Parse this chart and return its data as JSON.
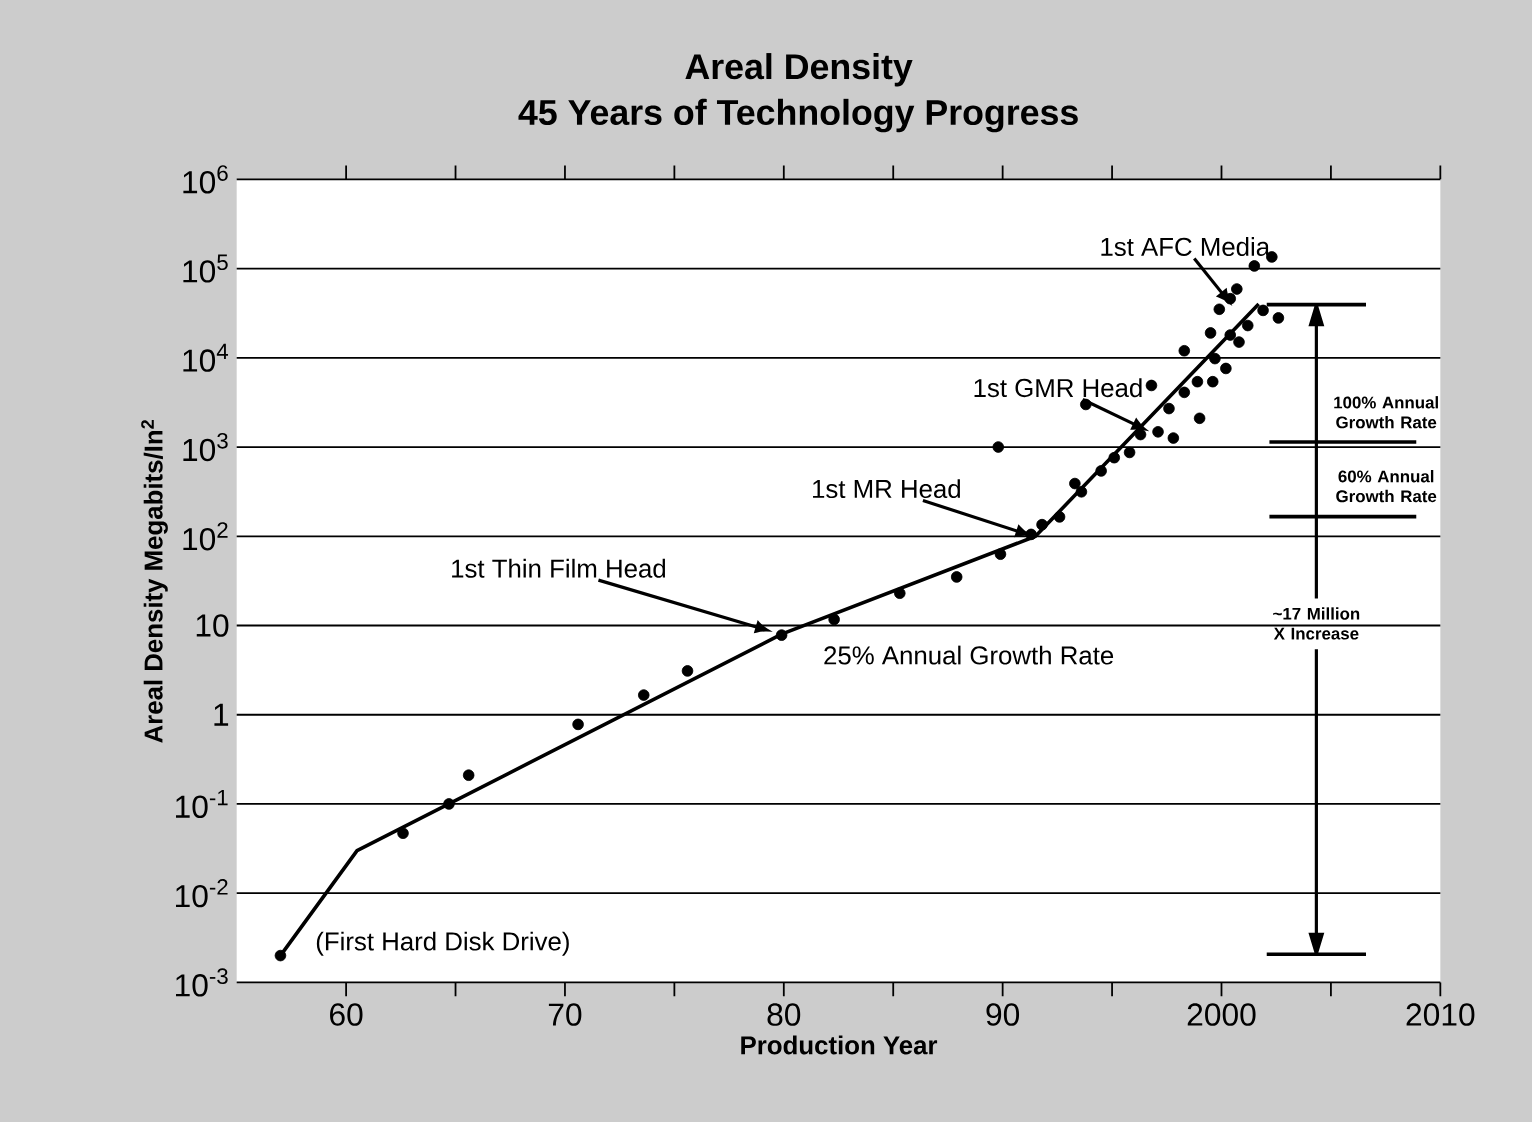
{
  "chart_data": {
    "type": "scatter",
    "title": "Areal Density",
    "subtitle": "45 Years of Technology Progress",
    "xlabel": "Production Year",
    "ylabel": "Areal Density Megabits/In$^{2}$",
    "log": "y",
    "grid": "y",
    "marker": "circle",
    "xlim": [
      1955,
      2010
    ],
    "ylim": [
      0.001,
      1000000
    ],
    "xticks": [
      {
        "value": 1960,
        "label": "60"
      },
      {
        "value": 1965,
        "label": null
      },
      {
        "value": 1970,
        "label": "70"
      },
      {
        "value": 1975,
        "label": null
      },
      {
        "value": 1980,
        "label": "80"
      },
      {
        "value": 1985,
        "label": null
      },
      {
        "value": 1990,
        "label": "90"
      },
      {
        "value": 1995,
        "label": null
      },
      {
        "value": 2000,
        "label": "2000"
      },
      {
        "value": 2005,
        "label": null
      },
      {
        "value": 2010,
        "label": "2010"
      }
    ],
    "yticks": [
      {
        "value": 0.001,
        "label": "10$^{-3}$"
      },
      {
        "value": 0.01,
        "label": "10$^{-2}$"
      },
      {
        "value": 0.1,
        "label": "10$^{-1}$"
      },
      1,
      10,
      {
        "value": 100,
        "label": "10$^{2}$"
      },
      {
        "value": 1000,
        "label": "10$^{3}$"
      },
      {
        "value": 10000,
        "label": "10$^{4}$"
      },
      {
        "value": 100000,
        "label": "10$^{5}$"
      },
      {
        "value": 1000000,
        "label": "10$^{6}$"
      }
    ],
    "series": [
      {
        "type": "line",
        "marker": "none",
        "color": "#000000",
        "x": [
          1957,
          1960.5,
          1979.9,
          1991.5,
          2001.7
        ],
        "values": [
          0.002,
          0.03,
          8,
          100,
          40000
        ]
      },
      {
        "color": "#000000",
        "x": [
          1957,
          1962.6,
          1964.7,
          1965.6,
          1970.6,
          1973.6,
          1975.6,
          1979.9,
          1982.3,
          1985.3,
          1987.9,
          1989.8,
          1989.9,
          1991.3,
          1991.8,
          1992.6,
          1993.3,
          1993.6,
          1993.8,
          1994.5,
          1995.1,
          1995.8,
          1996.3,
          1996.8,
          1997.1,
          1997.6,
          1997.8,
          1998.3,
          1998.3,
          1998.9,
          1999.0,
          1999.5,
          1999.6,
          1999.7,
          1999.9,
          2000.2,
          2000.4,
          2000.4,
          2000.7,
          2000.8,
          2001.2,
          2001.5,
          2001.9,
          2002.3,
          2002.6
        ],
        "values": [
          0.002,
          0.047,
          0.1,
          0.21,
          0.78,
          1.66,
          3.1,
          7.8,
          11.7,
          23,
          35,
          1000,
          63,
          105,
          135,
          165,
          390,
          315,
          3000,
          540,
          760,
          870,
          1380,
          4900,
          1480,
          2700,
          1260,
          4100,
          12000,
          5400,
          2100,
          19000,
          5400,
          9800,
          35000,
          7600,
          18000,
          46000,
          59000,
          15000,
          23000,
          107000,
          34000,
          135000,
          28000
        ]
      }
    ],
    "annotations": [
      {
        "text": "1st Thin Film Head",
        "x": 1979.5,
        "y": 8.5
      },
      {
        "text": "1st MR Head",
        "x": 1991.4,
        "y": 100
      },
      {
        "text": "1st GMR Head",
        "x": 1996.7,
        "y": 1500
      },
      {
        "text": "1st AFC Media",
        "x": 2000.5,
        "y": 38000
      },
      {
        "text": "25% Annual Growth Rate",
        "x": 1985,
        "y": 24
      },
      {
        "text": "(First Hard Disk Drive)",
        "x": 1957,
        "y": 0.002
      },
      "100% Annual Growth Rate",
      "60% Annual Growth Rate",
      "~17 Million X Increase"
    ]
  }
}
